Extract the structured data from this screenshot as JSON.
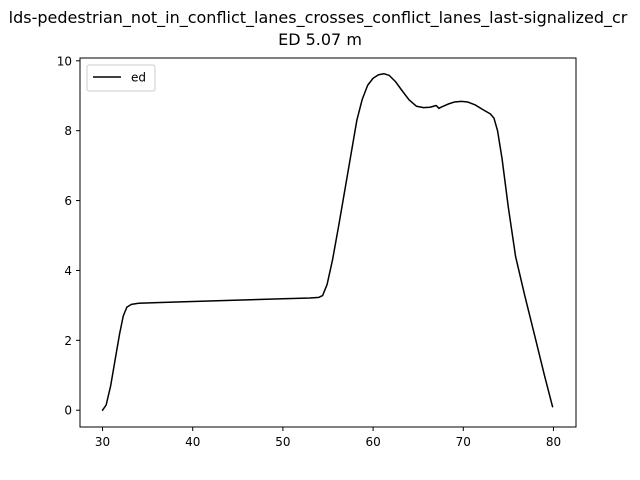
{
  "chart_data": {
    "type": "line",
    "title": "lds-pedestrian_not_in_conflict_lanes_crosses_conflict_lanes_last-signalized_cr",
    "subtitle": "ED 5.07 m",
    "xlabel": "",
    "ylabel": "",
    "xlim": [
      27.5,
      82.5
    ],
    "ylim": [
      -0.48,
      10.08
    ],
    "x_ticks": [
      30,
      40,
      50,
      60,
      70,
      80
    ],
    "y_ticks": [
      0,
      2,
      4,
      6,
      8,
      10
    ],
    "grid": false,
    "legend_position": "upper-left",
    "series": [
      {
        "name": "ed",
        "color": "#000000",
        "points": [
          [
            30.0,
            0.0
          ],
          [
            30.4,
            0.15
          ],
          [
            30.9,
            0.7
          ],
          [
            31.4,
            1.45
          ],
          [
            31.9,
            2.2
          ],
          [
            32.3,
            2.7
          ],
          [
            32.7,
            2.95
          ],
          [
            33.2,
            3.03
          ],
          [
            34.0,
            3.06
          ],
          [
            36.0,
            3.08
          ],
          [
            40.0,
            3.11
          ],
          [
            45.0,
            3.15
          ],
          [
            50.0,
            3.19
          ],
          [
            53.0,
            3.21
          ],
          [
            54.0,
            3.23
          ],
          [
            54.4,
            3.28
          ],
          [
            54.9,
            3.6
          ],
          [
            55.5,
            4.3
          ],
          [
            56.2,
            5.3
          ],
          [
            57.0,
            6.5
          ],
          [
            57.6,
            7.4
          ],
          [
            58.2,
            8.3
          ],
          [
            58.8,
            8.9
          ],
          [
            59.4,
            9.3
          ],
          [
            60.0,
            9.5
          ],
          [
            60.6,
            9.6
          ],
          [
            61.2,
            9.63
          ],
          [
            61.8,
            9.58
          ],
          [
            62.5,
            9.4
          ],
          [
            63.2,
            9.15
          ],
          [
            64.0,
            8.88
          ],
          [
            64.8,
            8.7
          ],
          [
            65.6,
            8.66
          ],
          [
            66.3,
            8.67
          ],
          [
            67.0,
            8.72
          ],
          [
            67.3,
            8.64
          ],
          [
            67.6,
            8.68
          ],
          [
            68.3,
            8.76
          ],
          [
            69.0,
            8.82
          ],
          [
            69.8,
            8.84
          ],
          [
            70.5,
            8.82
          ],
          [
            71.3,
            8.74
          ],
          [
            72.2,
            8.6
          ],
          [
            73.0,
            8.48
          ],
          [
            73.4,
            8.36
          ],
          [
            73.8,
            8.0
          ],
          [
            74.3,
            7.2
          ],
          [
            75.0,
            5.8
          ],
          [
            75.8,
            4.4
          ],
          [
            76.8,
            3.3
          ],
          [
            78.0,
            2.05
          ],
          [
            79.0,
            1.0
          ],
          [
            79.9,
            0.1
          ]
        ]
      }
    ]
  }
}
